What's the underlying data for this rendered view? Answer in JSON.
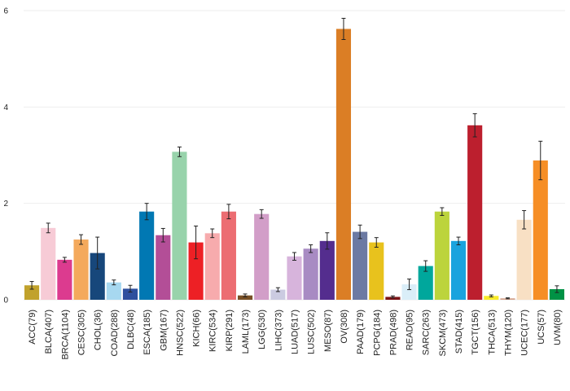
{
  "chart_data": {
    "type": "bar",
    "title": "",
    "xlabel": "",
    "ylabel": "",
    "ylim": [
      0,
      6.25
    ],
    "yticks": [
      0,
      2,
      4,
      6
    ],
    "grid": "horizontal",
    "legend": "none",
    "categories": [
      "ACC(79)",
      "BLCA(407)",
      "BRCA(1104)",
      "CESC(305)",
      "CHOL(36)",
      "COAD(288)",
      "DLBC(48)",
      "ESCA(185)",
      "GBM(167)",
      "HNSC(522)",
      "KICH(66)",
      "KIRC(534)",
      "KIRP(291)",
      "LAML(173)",
      "LGG(530)",
      "LIHC(373)",
      "LUAD(517)",
      "LUSC(502)",
      "MESO(87)",
      "OV(308)",
      "PAAD(179)",
      "PCPG(184)",
      "PRAD(498)",
      "READ(95)",
      "SARC(263)",
      "SKCM(473)",
      "STAD(415)",
      "TGCT(156)",
      "THCA(513)",
      "THYM(120)",
      "UCEC(177)",
      "UCS(57)",
      "UVM(80)"
    ],
    "values": [
      0.3,
      1.49,
      0.83,
      1.25,
      0.97,
      0.36,
      0.23,
      1.83,
      1.34,
      3.07,
      1.19,
      1.38,
      1.83,
      0.09,
      1.78,
      0.21,
      0.9,
      1.06,
      1.22,
      5.62,
      1.41,
      1.19,
      0.06,
      0.32,
      0.7,
      1.83,
      1.22,
      3.62,
      0.08,
      0.03,
      1.66,
      2.89,
      0.22
    ],
    "errors": [
      0.08,
      0.1,
      0.05,
      0.1,
      0.33,
      0.05,
      0.07,
      0.17,
      0.14,
      0.1,
      0.34,
      0.09,
      0.15,
      0.03,
      0.09,
      0.04,
      0.08,
      0.08,
      0.17,
      0.22,
      0.14,
      0.1,
      0.02,
      0.11,
      0.11,
      0.08,
      0.08,
      0.24,
      0.02,
      0.01,
      0.19,
      0.4,
      0.07
    ],
    "colors": [
      "#c1a22c",
      "#f7cbd6",
      "#dc3b8f",
      "#f4a95c",
      "#17477b",
      "#a7d8f0",
      "#2e4f9e",
      "#0178b3",
      "#b34e97",
      "#98d3ab",
      "#ed2025",
      "#f7abad",
      "#ec6d72",
      "#784f25",
      "#d29ec8",
      "#cbcbe1",
      "#d7b4dc",
      "#a88bc3",
      "#542d8e",
      "#db7e25",
      "#6c7aa3",
      "#e8c21d",
      "#7c1316",
      "#daeef8",
      "#00a79c",
      "#bcd43c",
      "#1aa3de",
      "#bc1f2e",
      "#f8ea2a",
      "#d4a48d",
      "#f8e0c4",
      "#f68e25",
      "#009245"
    ]
  }
}
